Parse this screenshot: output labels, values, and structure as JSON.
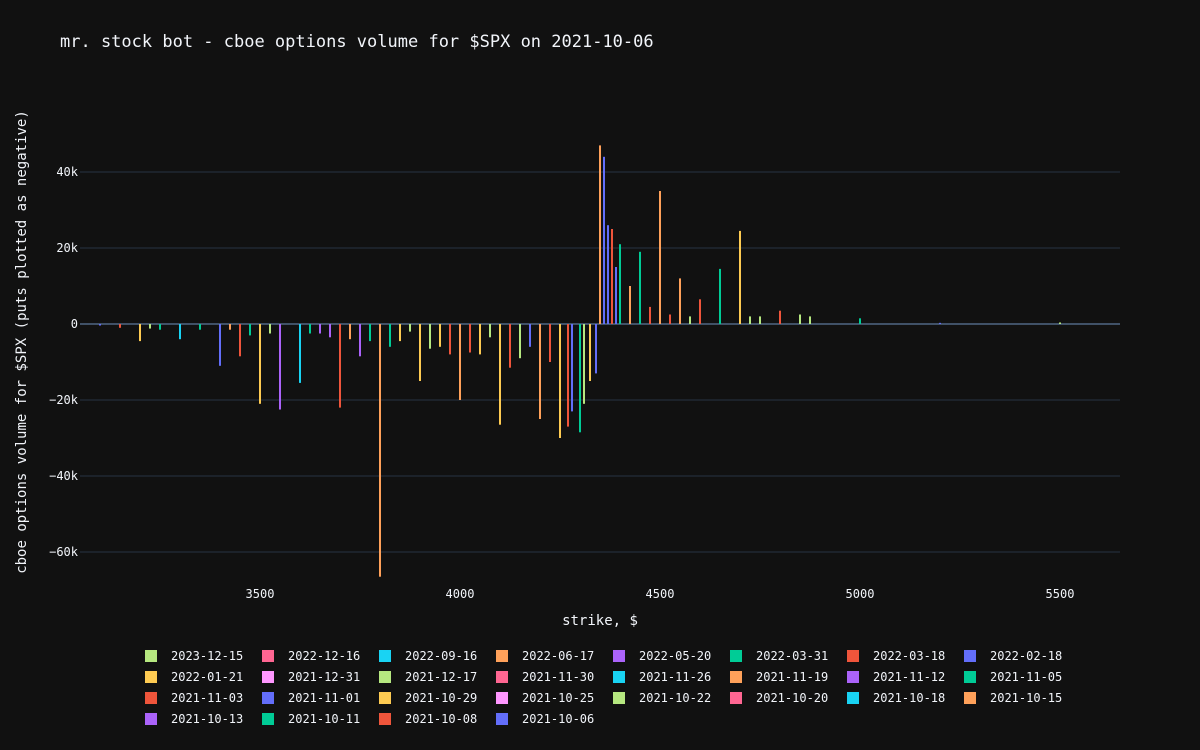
{
  "chart_data": {
    "type": "bar",
    "barmode": "stacked (calls positive, puts negative)",
    "title": "mr. stock bot - cboe options volume for $SPX on 2021-10-06",
    "xlabel": "strike, $",
    "ylabel": "cboe options volume for $SPX (puts plotted as negative)",
    "xlim": [
      3050,
      5650
    ],
    "ylim": [
      -70000,
      55000
    ],
    "x_ticks": [
      3500,
      4000,
      4500,
      5000,
      5500
    ],
    "x_tick_labels": [
      "3500",
      "4000",
      "4500",
      "5000",
      "5500"
    ],
    "y_ticks": [
      -60000,
      -40000,
      -20000,
      0,
      20000,
      40000
    ],
    "y_tick_labels": [
      "−60k",
      "−40k",
      "−20k",
      "0",
      "20k",
      "40k"
    ],
    "grid": true,
    "legend_position": "bottom",
    "series": [
      {
        "name": "2023-12-15",
        "color": "#b6e880"
      },
      {
        "name": "2022-12-16",
        "color": "#ff6692"
      },
      {
        "name": "2022-09-16",
        "color": "#19d3f3"
      },
      {
        "name": "2022-06-17",
        "color": "#ffa15a"
      },
      {
        "name": "2022-05-20",
        "color": "#ab63fa"
      },
      {
        "name": "2022-03-31",
        "color": "#00cc96"
      },
      {
        "name": "2022-03-18",
        "color": "#ef553b"
      },
      {
        "name": "2022-02-18",
        "color": "#636efa"
      },
      {
        "name": "2022-01-21",
        "color": "#fecb52"
      },
      {
        "name": "2021-12-31",
        "color": "#ff97ff"
      },
      {
        "name": "2021-12-17",
        "color": "#b6e880"
      },
      {
        "name": "2021-11-30",
        "color": "#ff6692"
      },
      {
        "name": "2021-11-26",
        "color": "#19d3f3"
      },
      {
        "name": "2021-11-19",
        "color": "#ffa15a"
      },
      {
        "name": "2021-11-12",
        "color": "#ab63fa"
      },
      {
        "name": "2021-11-05",
        "color": "#00cc96"
      },
      {
        "name": "2021-11-03",
        "color": "#ef553b"
      },
      {
        "name": "2021-11-01",
        "color": "#636efa"
      },
      {
        "name": "2021-10-29",
        "color": "#fecb52"
      },
      {
        "name": "2021-10-25",
        "color": "#ff97ff"
      },
      {
        "name": "2021-10-22",
        "color": "#b6e880"
      },
      {
        "name": "2021-10-20",
        "color": "#ff6692"
      },
      {
        "name": "2021-10-18",
        "color": "#19d3f3"
      },
      {
        "name": "2021-10-15",
        "color": "#ffa15a"
      },
      {
        "name": "2021-10-13",
        "color": "#ab63fa"
      },
      {
        "name": "2021-10-11",
        "color": "#00cc96"
      },
      {
        "name": "2021-10-08",
        "color": "#ef553b"
      },
      {
        "name": "2021-10-06",
        "color": "#636efa"
      }
    ],
    "bars": [
      {
        "strike": 3100,
        "value": -400,
        "color": "#636efa"
      },
      {
        "strike": 3150,
        "value": -1000,
        "color": "#ef553b"
      },
      {
        "strike": 3200,
        "value": -4500,
        "color": "#fecb52"
      },
      {
        "strike": 3225,
        "value": -1200,
        "color": "#b6e880"
      },
      {
        "strike": 3250,
        "value": -1500,
        "color": "#00cc96"
      },
      {
        "strike": 3300,
        "value": -4000,
        "color": "#19d3f3"
      },
      {
        "strike": 3350,
        "value": -1500,
        "color": "#00cc96"
      },
      {
        "strike": 3400,
        "value": -11000,
        "color": "#636efa"
      },
      {
        "strike": 3425,
        "value": -1500,
        "color": "#ffa15a"
      },
      {
        "strike": 3450,
        "value": -8500,
        "color": "#ef553b"
      },
      {
        "strike": 3475,
        "value": -3000,
        "color": "#00cc96"
      },
      {
        "strike": 3500,
        "value": -21000,
        "color": "#fecb52"
      },
      {
        "strike": 3525,
        "value": -2500,
        "color": "#b6e880"
      },
      {
        "strike": 3550,
        "value": -22500,
        "color": "#ab63fa"
      },
      {
        "strike": 3600,
        "value": -15500,
        "color": "#19d3f3"
      },
      {
        "strike": 3625,
        "value": -2500,
        "color": "#00cc96"
      },
      {
        "strike": 3650,
        "value": -2500,
        "color": "#ab63fa"
      },
      {
        "strike": 3675,
        "value": -3500,
        "color": "#ab63fa"
      },
      {
        "strike": 3700,
        "value": -22000,
        "color": "#ef553b"
      },
      {
        "strike": 3725,
        "value": -4000,
        "color": "#ffa15a"
      },
      {
        "strike": 3750,
        "value": -8500,
        "color": "#ab63fa"
      },
      {
        "strike": 3775,
        "value": -4500,
        "color": "#00cc96"
      },
      {
        "strike": 3800,
        "value": -66500,
        "color": "#ffa15a"
      },
      {
        "strike": 3825,
        "value": -6000,
        "color": "#00cc96"
      },
      {
        "strike": 3850,
        "value": -4500,
        "color": "#fecb52"
      },
      {
        "strike": 3875,
        "value": -2000,
        "color": "#b6e880"
      },
      {
        "strike": 3900,
        "value": -15000,
        "color": "#fecb52"
      },
      {
        "strike": 3925,
        "value": -6500,
        "color": "#b6e880"
      },
      {
        "strike": 3950,
        "value": -6000,
        "color": "#fecb52"
      },
      {
        "strike": 3975,
        "value": -8000,
        "color": "#ef553b"
      },
      {
        "strike": 4000,
        "value": -20000,
        "color": "#ffa15a"
      },
      {
        "strike": 4025,
        "value": -7500,
        "color": "#ef553b"
      },
      {
        "strike": 4050,
        "value": -8000,
        "color": "#fecb52"
      },
      {
        "strike": 4075,
        "value": -3500,
        "color": "#b6e880"
      },
      {
        "strike": 4100,
        "value": -26500,
        "color": "#fecb52"
      },
      {
        "strike": 4125,
        "value": -11500,
        "color": "#ef553b"
      },
      {
        "strike": 4150,
        "value": -9000,
        "color": "#b6e880"
      },
      {
        "strike": 4175,
        "value": -6000,
        "color": "#636efa"
      },
      {
        "strike": 4200,
        "value": -25000,
        "color": "#ffa15a"
      },
      {
        "strike": 4225,
        "value": -10000,
        "color": "#ef553b"
      },
      {
        "strike": 4250,
        "value": -30000,
        "color": "#fecb52"
      },
      {
        "strike": 4270,
        "value": -27000,
        "color": "#ef553b"
      },
      {
        "strike": 4280,
        "value": -23000,
        "color": "#636efa"
      },
      {
        "strike": 4300,
        "value": -28500,
        "color": "#00cc96"
      },
      {
        "strike": 4310,
        "value": -21000,
        "color": "#b6e880"
      },
      {
        "strike": 4325,
        "value": -15000,
        "color": "#fecb52"
      },
      {
        "strike": 4340,
        "value": -13000,
        "color": "#636efa"
      },
      {
        "strike": 4350,
        "value": 47000,
        "color": "#ffa15a"
      },
      {
        "strike": 4360,
        "value": 44000,
        "color": "#636efa"
      },
      {
        "strike": 4370,
        "value": 26000,
        "color": "#636efa"
      },
      {
        "strike": 4380,
        "value": 25000,
        "color": "#ef553b"
      },
      {
        "strike": 4390,
        "value": 15000,
        "color": "#636efa"
      },
      {
        "strike": 4400,
        "value": 21000,
        "color": "#00cc96"
      },
      {
        "strike": 4425,
        "value": 10000,
        "color": "#ffa15a"
      },
      {
        "strike": 4450,
        "value": 19000,
        "color": "#00cc96"
      },
      {
        "strike": 4475,
        "value": 4500,
        "color": "#ef553b"
      },
      {
        "strike": 4500,
        "value": 35000,
        "color": "#ffa15a"
      },
      {
        "strike": 4525,
        "value": 2500,
        "color": "#ef553b"
      },
      {
        "strike": 4550,
        "value": 12000,
        "color": "#ffa15a"
      },
      {
        "strike": 4575,
        "value": 2000,
        "color": "#b6e880"
      },
      {
        "strike": 4600,
        "value": 6500,
        "color": "#ef553b"
      },
      {
        "strike": 4650,
        "value": 14500,
        "color": "#00cc96"
      },
      {
        "strike": 4700,
        "value": 24500,
        "color": "#fecb52"
      },
      {
        "strike": 4725,
        "value": 2000,
        "color": "#b6e880"
      },
      {
        "strike": 4750,
        "value": 2000,
        "color": "#b6e880"
      },
      {
        "strike": 4800,
        "value": 3500,
        "color": "#ef553b"
      },
      {
        "strike": 4850,
        "value": 2500,
        "color": "#b6e880"
      },
      {
        "strike": 4875,
        "value": 2000,
        "color": "#b6e880"
      },
      {
        "strike": 5000,
        "value": 1500,
        "color": "#00cc96"
      },
      {
        "strike": 5200,
        "value": 300,
        "color": "#636efa"
      },
      {
        "strike": 5500,
        "value": 400,
        "color": "#b6e880"
      }
    ]
  }
}
